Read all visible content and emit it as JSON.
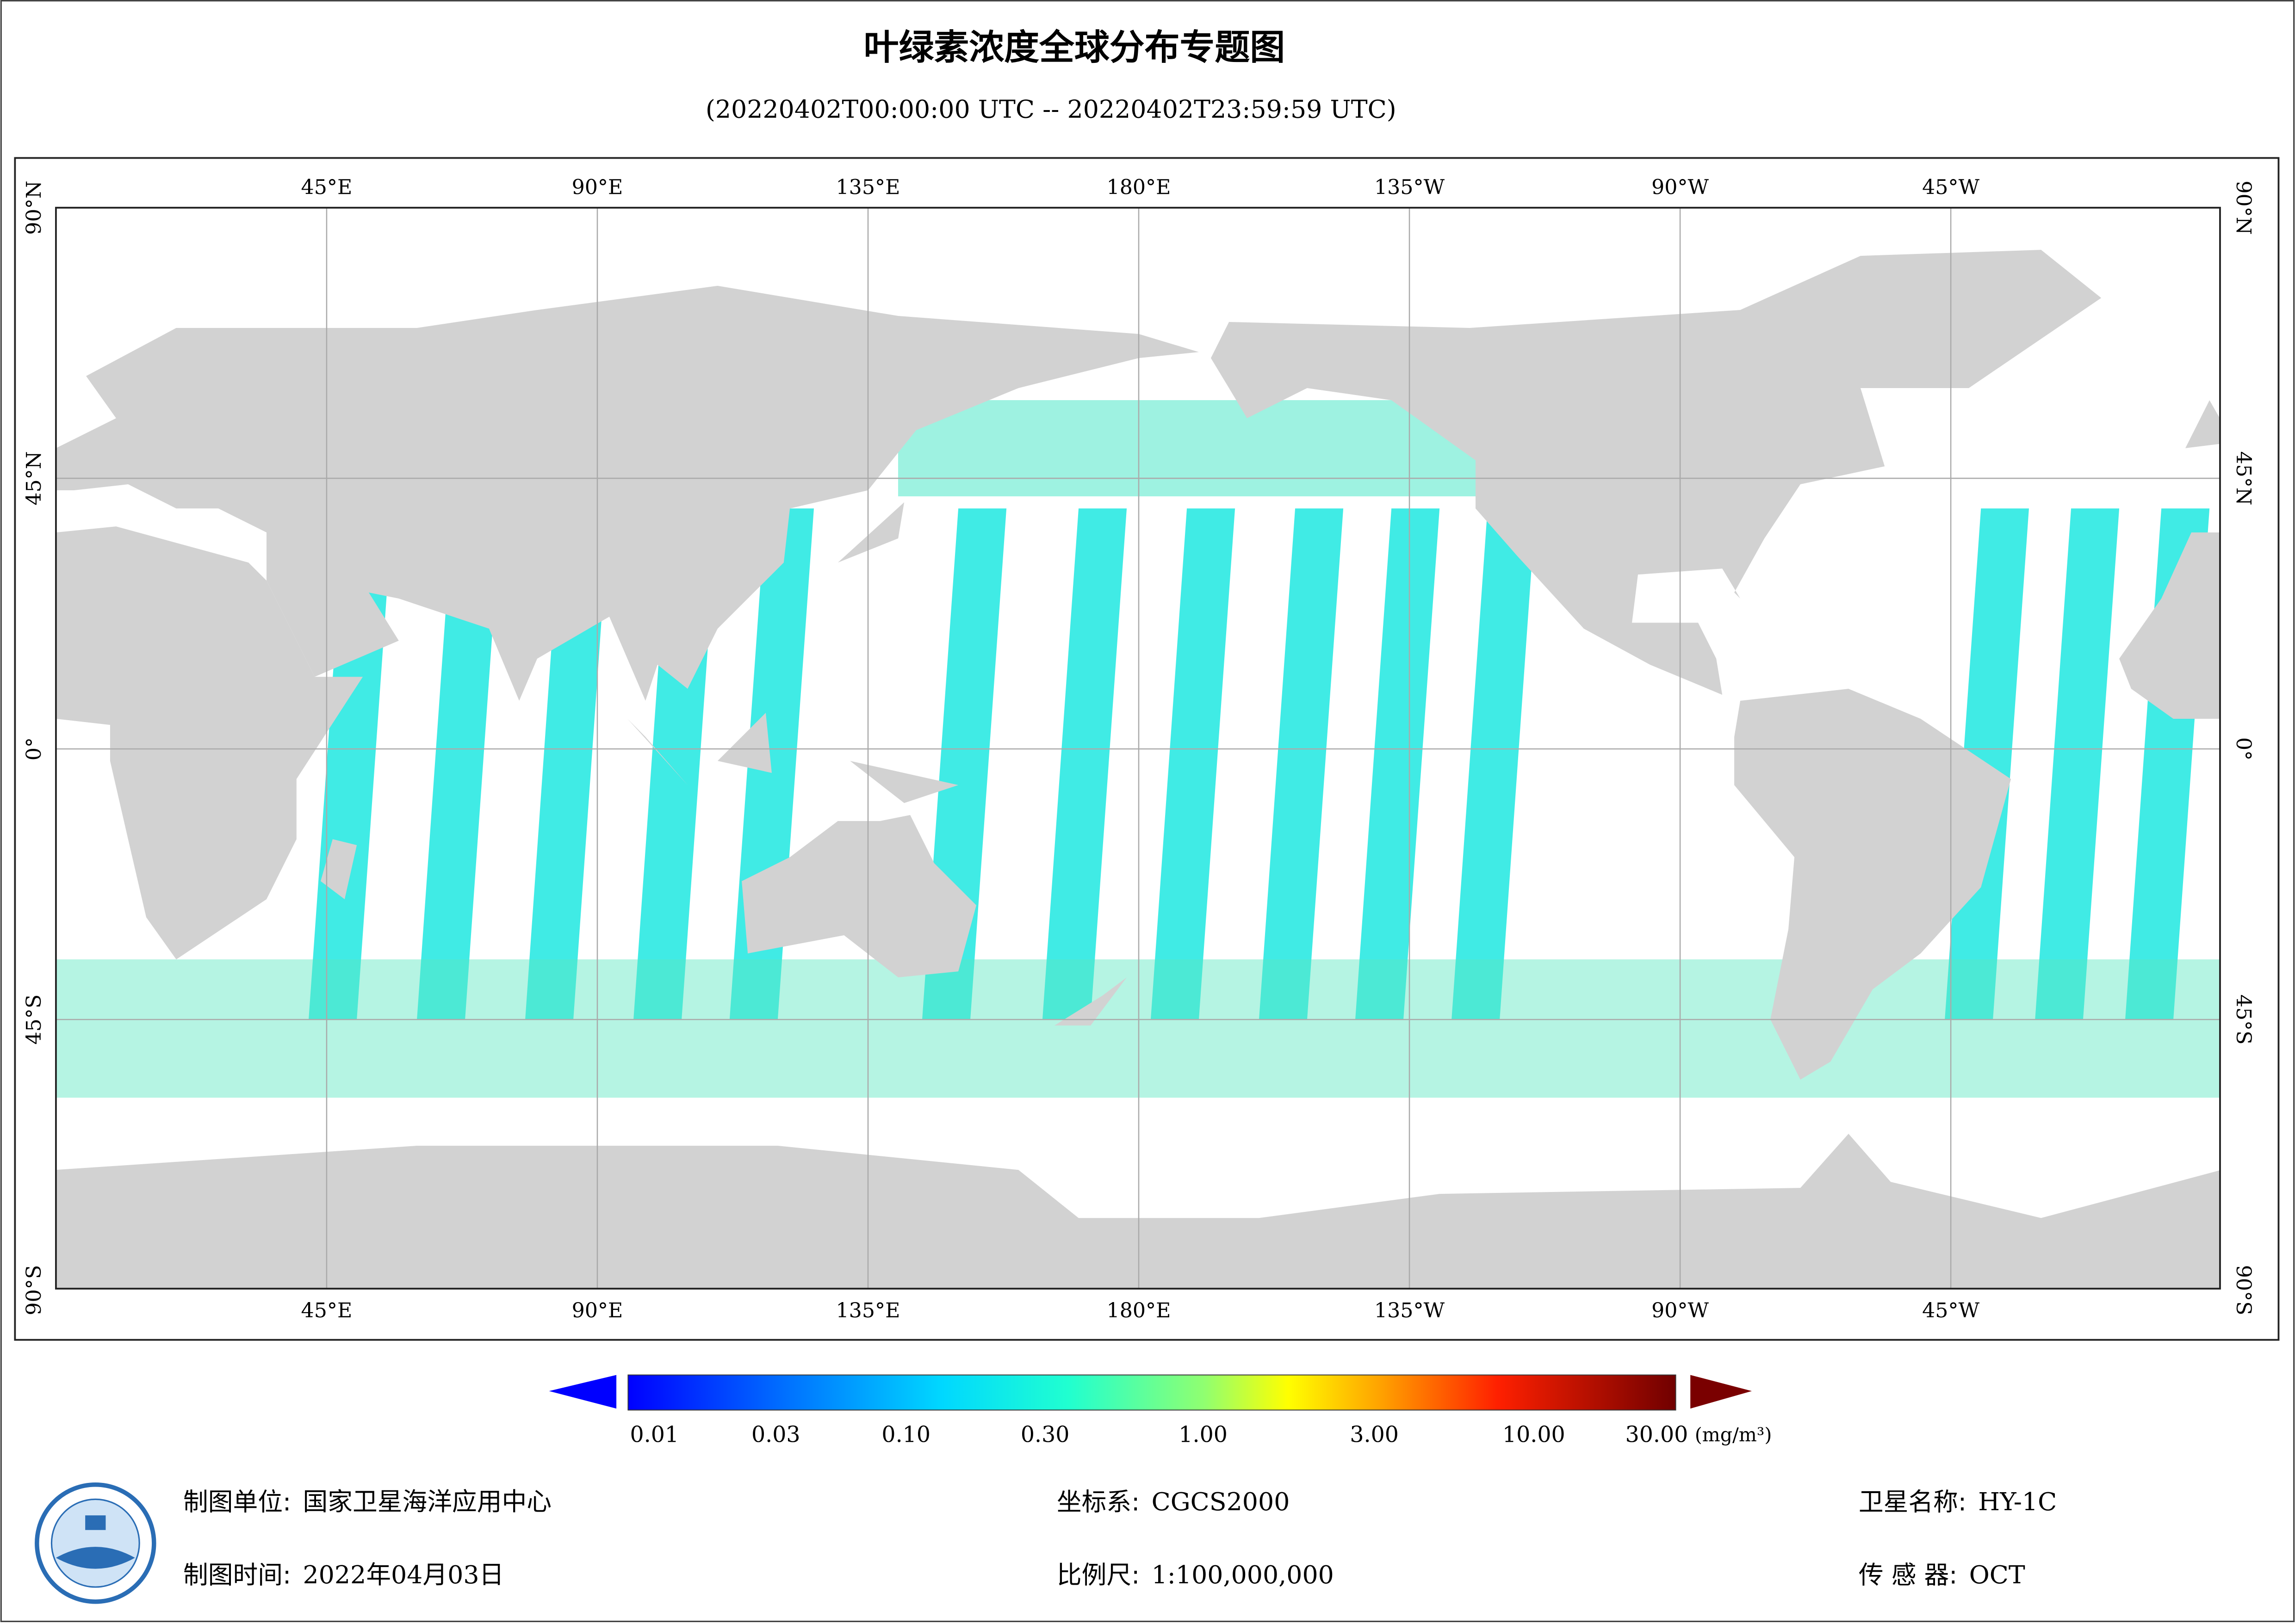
{
  "header": {
    "title": "叶绿素浓度全球分布专题图",
    "subtitle": "(20220402T00:00:00 UTC -- 20220402T23:59:59 UTC)"
  },
  "map": {
    "longitude_labels": [
      "45°E",
      "90°E",
      "135°E",
      "180°E",
      "135°W",
      "90°W",
      "45°W"
    ],
    "latitude_labels": [
      "90°N",
      "45°N",
      "0°",
      "45°S",
      "90°S"
    ]
  },
  "legend": {
    "labels": [
      "0.01",
      "0.03",
      "0.10",
      "0.30",
      "1.00",
      "3.00",
      "10.00",
      "30.00"
    ],
    "unit": "(mg/m³)"
  },
  "footer": {
    "fields": [
      {
        "label": "制图单位:",
        "value": "国家卫星海洋应用中心"
      },
      {
        "label": "坐标系:",
        "value": "CGCS2000"
      },
      {
        "label": "卫星名称:",
        "value": "HY-1C"
      },
      {
        "label": "制图时间:",
        "value": "2022年04月03日"
      },
      {
        "label": "比例尺:",
        "value": "1:100,000,000"
      },
      {
        "label": "传 感 器:",
        "value": "OCT"
      }
    ]
  }
}
